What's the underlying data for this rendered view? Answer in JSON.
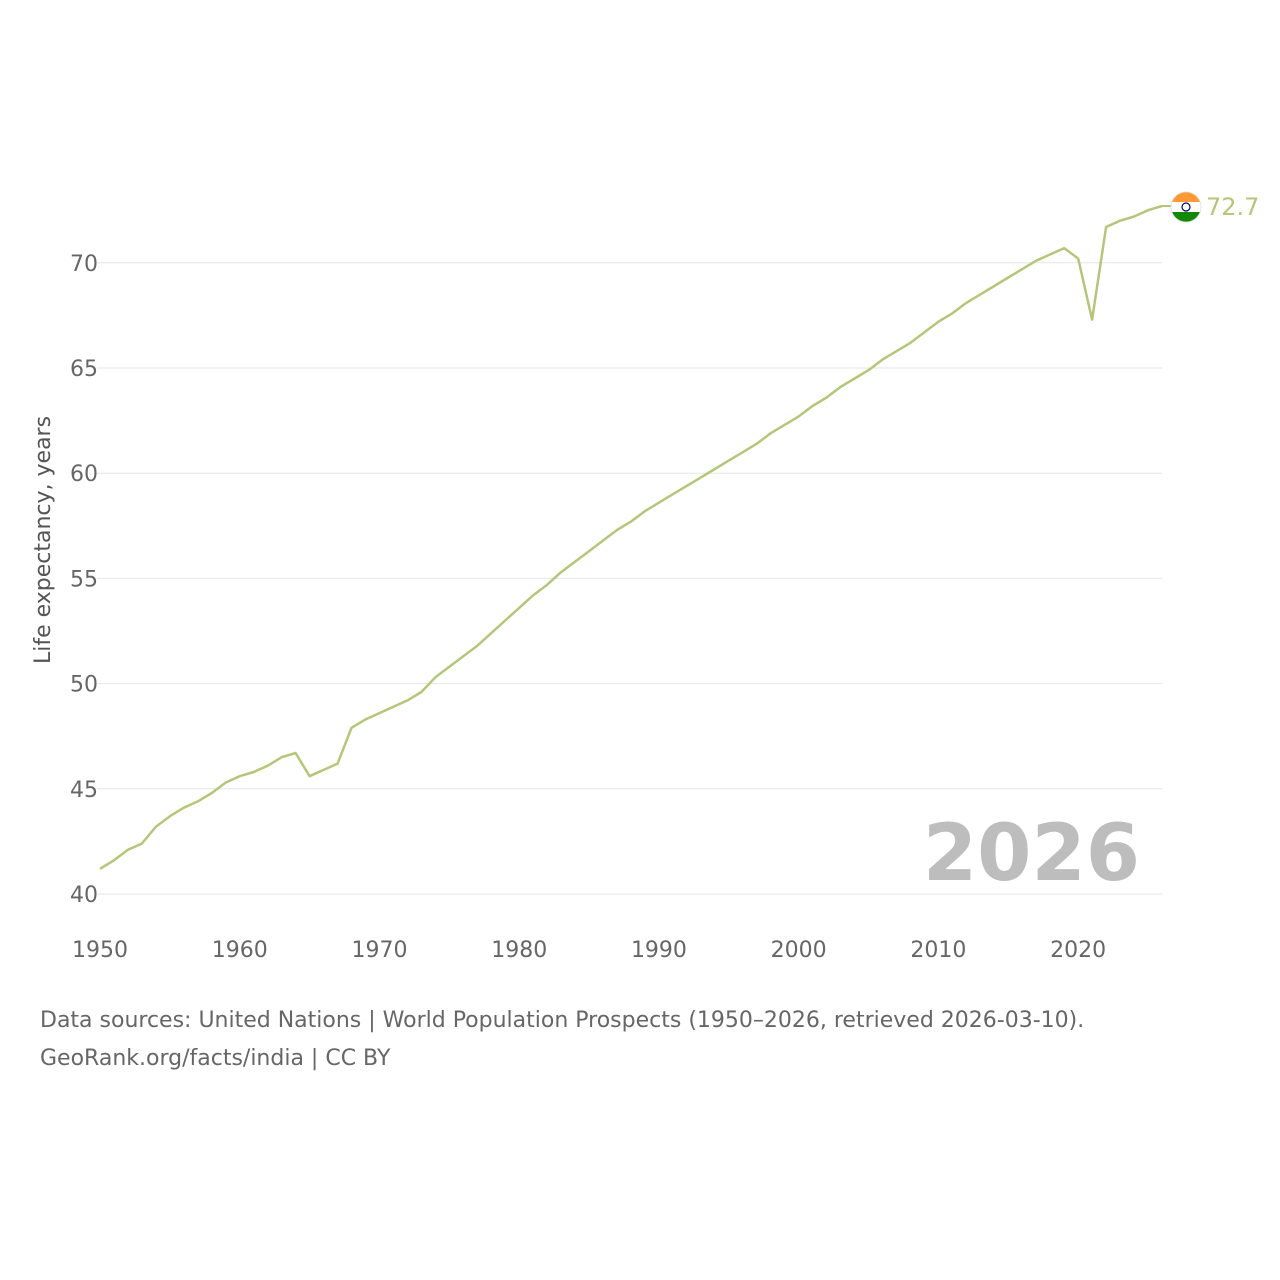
{
  "chart_data": {
    "type": "line",
    "title": "",
    "xlabel": "",
    "ylabel": "Life expectancy, years",
    "xlim": [
      1950,
      2026
    ],
    "ylim": [
      40,
      72.7
    ],
    "x_ticks": [
      1950,
      1960,
      1970,
      1980,
      1990,
      2000,
      2010,
      2020
    ],
    "x_tick_labels": [
      "1950",
      "1960",
      "1970",
      "1980",
      "1990",
      "2000",
      "2010",
      "2020"
    ],
    "y_ticks": [
      40,
      45,
      50,
      55,
      60,
      65,
      70
    ],
    "y_tick_labels": [
      "40",
      "45",
      "50",
      "55",
      "60",
      "65",
      "70"
    ],
    "grid": true,
    "year_label": "2026",
    "series": [
      {
        "name": "India",
        "color": "#b5c67a",
        "end_label": "72.7",
        "marker": "india-flag",
        "x": [
          1950,
          1951,
          1952,
          1953,
          1954,
          1955,
          1956,
          1957,
          1958,
          1959,
          1960,
          1961,
          1962,
          1963,
          1964,
          1965,
          1966,
          1967,
          1968,
          1969,
          1970,
          1971,
          1972,
          1973,
          1974,
          1975,
          1976,
          1977,
          1978,
          1979,
          1980,
          1981,
          1982,
          1983,
          1984,
          1985,
          1986,
          1987,
          1988,
          1989,
          1990,
          1991,
          1992,
          1993,
          1994,
          1995,
          1996,
          1997,
          1998,
          1999,
          2000,
          2001,
          2002,
          2003,
          2004,
          2005,
          2006,
          2007,
          2008,
          2009,
          2010,
          2011,
          2012,
          2013,
          2014,
          2015,
          2016,
          2017,
          2018,
          2019,
          2020,
          2021,
          2022,
          2023,
          2024,
          2025,
          2026
        ],
        "values": [
          41.2,
          41.6,
          42.1,
          42.4,
          43.2,
          43.7,
          44.1,
          44.4,
          44.8,
          45.3,
          45.6,
          45.8,
          46.1,
          46.5,
          46.7,
          45.6,
          45.9,
          46.2,
          47.9,
          48.3,
          48.6,
          48.9,
          49.2,
          49.6,
          50.3,
          50.8,
          51.3,
          51.8,
          52.4,
          53.0,
          53.6,
          54.2,
          54.7,
          55.3,
          55.8,
          56.3,
          56.8,
          57.3,
          57.7,
          58.2,
          58.6,
          59.0,
          59.4,
          59.8,
          60.2,
          60.6,
          61.0,
          61.4,
          61.9,
          62.3,
          62.7,
          63.2,
          63.6,
          64.1,
          64.5,
          64.9,
          65.4,
          65.8,
          66.2,
          66.7,
          67.2,
          67.6,
          68.1,
          68.5,
          68.9,
          69.3,
          69.7,
          70.1,
          70.4,
          70.7,
          70.2,
          67.3,
          71.7,
          72.0,
          72.2,
          72.5,
          72.7
        ]
      }
    ]
  },
  "footer": {
    "source_line": "Data sources: United Nations | World Population Prospects (1950–2026, retrieved 2026-03-10).",
    "credit_line": "GeoRank.org/facts/india | CC BY"
  },
  "colors": {
    "line": "#b5c67a",
    "flag_saffron": "#ff9933",
    "flag_white": "#ffffff",
    "flag_green": "#138808",
    "chakra": "#000080"
  }
}
